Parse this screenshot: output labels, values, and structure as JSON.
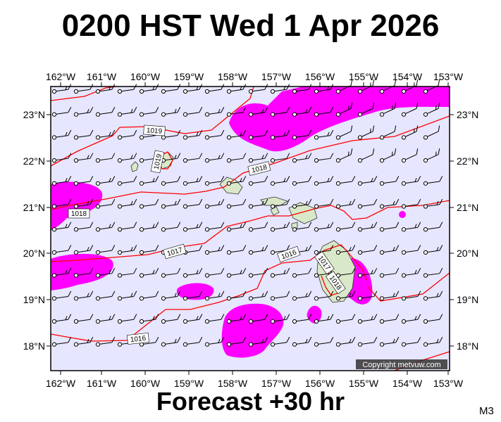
{
  "title": "0200 HST Wed 1 Apr 2026",
  "subtitle": "Forecast +30 hr",
  "model_code": "M3",
  "copyright": "Copyright metvuw.com",
  "longitude_labels": [
    "162°W",
    "161°W",
    "160°W",
    "159°W",
    "158°W",
    "157°W",
    "156°W",
    "155°W",
    "154°W",
    "153°W"
  ],
  "latitude_labels": [
    "23°N",
    "22°N",
    "21°N",
    "20°N",
    "19°N",
    "18°N"
  ],
  "isobar_labels": [
    "1019",
    "1019",
    "1018",
    "1018",
    "1017",
    "1016",
    "1017",
    "1018",
    "1016"
  ],
  "colors": {
    "ocean": "#e6e6ff",
    "rain": "#ff00ff",
    "isobar": "#ff0000",
    "land": "#d8e8c8",
    "wind": "#000000"
  },
  "map_extent": {
    "lon_min": -162,
    "lon_max": -153,
    "lat_min": 17.5,
    "lat_max": 23.6
  }
}
